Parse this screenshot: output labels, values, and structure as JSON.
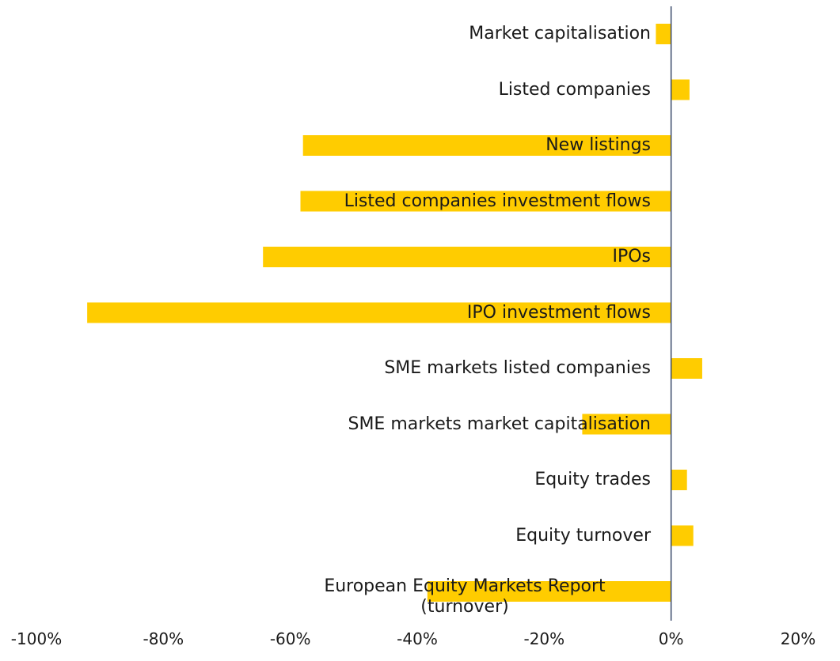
{
  "chart_data": {
    "type": "bar",
    "orientation": "horizontal",
    "categories": [
      "Market capitalisation",
      "Listed companies",
      "New listings",
      "Listed companies investment flows",
      "IPOs",
      "IPO investment flows",
      "SME markets listed companies",
      "SME markets market capitalisation",
      "Equity trades",
      "Equity turnover",
      "European Equity Markets Report (turnover)"
    ],
    "values": [
      -2.4,
      2.9,
      -58,
      -58.4,
      -64.3,
      -92,
      4.9,
      -14,
      2.5,
      3.5,
      -38.4
    ],
    "color": "#ffcc00",
    "xlim": [
      -100,
      20
    ],
    "xticks": [
      {
        "value": -100,
        "label": "-100%"
      },
      {
        "value": -80,
        "label": "-80%"
      },
      {
        "value": -60,
        "label": "-60%"
      },
      {
        "value": -40,
        "label": "-40%"
      },
      {
        "value": -20,
        "label": "-20%"
      },
      {
        "value": 0,
        "label": "0%"
      },
      {
        "value": 20,
        "label": "20%"
      }
    ]
  }
}
